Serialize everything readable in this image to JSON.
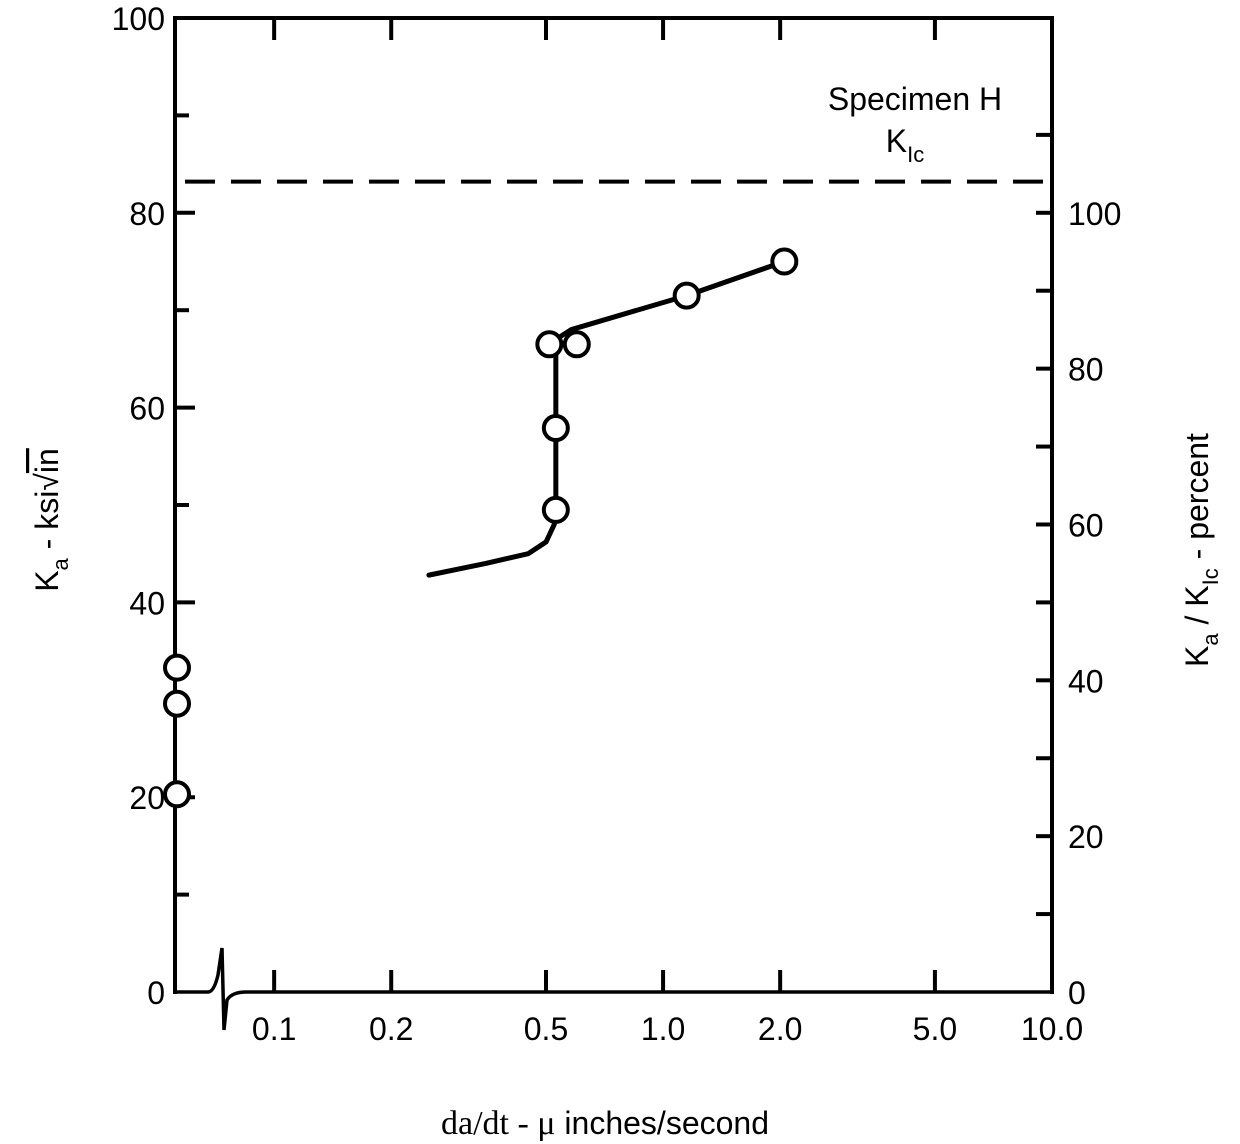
{
  "chart_data": {
    "type": "line",
    "x_scale": "log",
    "x_axis_break": true,
    "ylabel": "K_a - ksi√in",
    "ylabel_parts": {
      "k": "K",
      "sub": "a",
      "rest": " - ksi",
      "root": "in"
    },
    "y2label_parts": {
      "k1": "K",
      "sub1": "a",
      "slash": " / ",
      "k2": "K",
      "sub2": "Ic",
      "rest": " - percent"
    },
    "xlabel_parts": {
      "a": "da/dt - ",
      "mu": "μ",
      "b": " inches/second"
    },
    "ylim": [
      0,
      100
    ],
    "y2lim": [
      0,
      125
    ],
    "xlim": [
      0.0556,
      10.0
    ],
    "x_ticks": [
      {
        "value": 0.1,
        "label": "0.1"
      },
      {
        "value": 0.2,
        "label": "0.2"
      },
      {
        "value": 0.5,
        "label": "0.5"
      },
      {
        "value": 1.0,
        "label": "1.0"
      },
      {
        "value": 2.0,
        "label": "2.0"
      },
      {
        "value": 5.0,
        "label": "5.0"
      },
      {
        "value": 10.0,
        "label": "10.0"
      }
    ],
    "y_ticks": [
      {
        "value": 0,
        "label": "0"
      },
      {
        "value": 20,
        "label": "20"
      },
      {
        "value": 40,
        "label": "40"
      },
      {
        "value": 60,
        "label": "60"
      },
      {
        "value": 80,
        "label": "80"
      },
      {
        "value": 100,
        "label": "100"
      }
    ],
    "y_minor_ticks": [
      10,
      30,
      50,
      70,
      90
    ],
    "y2_ticks": [
      {
        "value": 0,
        "label": "0"
      },
      {
        "value": 20,
        "label": "20"
      },
      {
        "value": 40,
        "label": "40"
      },
      {
        "value": 60,
        "label": "60"
      },
      {
        "value": 80,
        "label": "80"
      },
      {
        "value": 100,
        "label": "100"
      }
    ],
    "y2_minor_ticks": [
      10,
      30,
      50,
      70,
      90,
      110
    ],
    "reference_line": {
      "y": 83.2,
      "style": "dashed",
      "label_parts": {
        "specimen": "Specimen H",
        "k": "K",
        "sub": "Ic"
      }
    },
    "series": [
      {
        "points_zero_rate": [
          {
            "x": 0,
            "y": 33.3
          },
          {
            "x": 0,
            "y": 29.6
          },
          {
            "x": 0,
            "y": 20.3
          }
        ],
        "points": [
          {
            "x": 0.53,
            "y": 49.5
          },
          {
            "x": 0.53,
            "y": 57.9
          },
          {
            "x": 0.51,
            "y": 66.5
          },
          {
            "x": 0.6,
            "y": 66.5
          },
          {
            "x": 1.15,
            "y": 71.5
          },
          {
            "x": 2.05,
            "y": 75.0
          }
        ],
        "curve": [
          {
            "x": 0.25,
            "y": 42.8
          },
          {
            "x": 0.35,
            "y": 44.0
          },
          {
            "x": 0.45,
            "y": 45.0
          },
          {
            "x": 0.5,
            "y": 46.2
          },
          {
            "x": 0.525,
            "y": 48.0
          },
          {
            "x": 0.53,
            "y": 49.5
          },
          {
            "x": 0.53,
            "y": 57.9
          },
          {
            "x": 0.53,
            "y": 67.0
          },
          {
            "x": 0.58,
            "y": 68.0
          },
          {
            "x": 1.15,
            "y": 71.5
          },
          {
            "x": 2.05,
            "y": 75.0
          }
        ]
      }
    ]
  }
}
